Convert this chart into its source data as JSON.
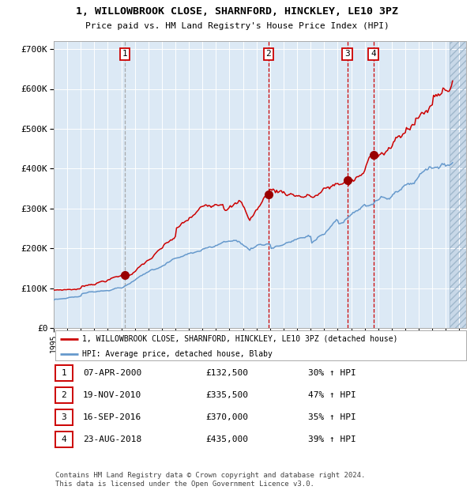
{
  "title": "1, WILLOWBROOK CLOSE, SHARNFORD, HINCKLEY, LE10 3PZ",
  "subtitle": "Price paid vs. HM Land Registry's House Price Index (HPI)",
  "bg_color": "#dce9f5",
  "transactions": [
    {
      "num": 1,
      "date": "07-APR-2000",
      "year": 2000.27,
      "price": 132500,
      "hpi_pct": "30% ↑ HPI"
    },
    {
      "num": 2,
      "date": "19-NOV-2010",
      "year": 2010.88,
      "price": 335500,
      "hpi_pct": "47% ↑ HPI"
    },
    {
      "num": 3,
      "date": "16-SEP-2016",
      "year": 2016.71,
      "price": 370000,
      "hpi_pct": "35% ↑ HPI"
    },
    {
      "num": 4,
      "date": "23-AUG-2018",
      "year": 2018.64,
      "price": 435000,
      "hpi_pct": "39% ↑ HPI"
    }
  ],
  "xmin": 1995,
  "xmax": 2025.5,
  "ymin": 0,
  "ymax": 720000,
  "yticks": [
    0,
    100000,
    200000,
    300000,
    400000,
    500000,
    600000,
    700000
  ],
  "ytick_labels": [
    "£0",
    "£100K",
    "£200K",
    "£300K",
    "£400K",
    "£500K",
    "£600K",
    "£700K"
  ],
  "legend_line1": "1, WILLOWBROOK CLOSE, SHARNFORD, HINCKLEY, LE10 3PZ (detached house)",
  "legend_line2": "HPI: Average price, detached house, Blaby",
  "footer1": "Contains HM Land Registry data © Crown copyright and database right 2024.",
  "footer2": "This data is licensed under the Open Government Licence v3.0.",
  "red_line_color": "#cc0000",
  "blue_line_color": "#6699cc",
  "marker_color": "#990000",
  "vline1_color": "#999999",
  "vline2_color": "#cc0000",
  "red_anchors_x": [
    1995,
    1997,
    2000.27,
    2004,
    2007.5,
    2008.7,
    2009.5,
    2010.88,
    2014,
    2016.71,
    2018,
    2018.64,
    2021,
    2023,
    2024.5
  ],
  "red_anchors_y": [
    95000,
    100000,
    132500,
    230000,
    310000,
    320000,
    270000,
    335500,
    330000,
    370000,
    395000,
    435000,
    490000,
    560000,
    620000
  ],
  "blue_anchors_x": [
    1995,
    1997,
    2000,
    2004,
    2007.5,
    2008.5,
    2009.5,
    2011,
    2014,
    2016,
    2018,
    2020,
    2022,
    2024.5
  ],
  "blue_anchors_y": [
    70000,
    80000,
    100000,
    175000,
    215000,
    220000,
    195000,
    210000,
    230000,
    270000,
    310000,
    330000,
    380000,
    415000
  ]
}
